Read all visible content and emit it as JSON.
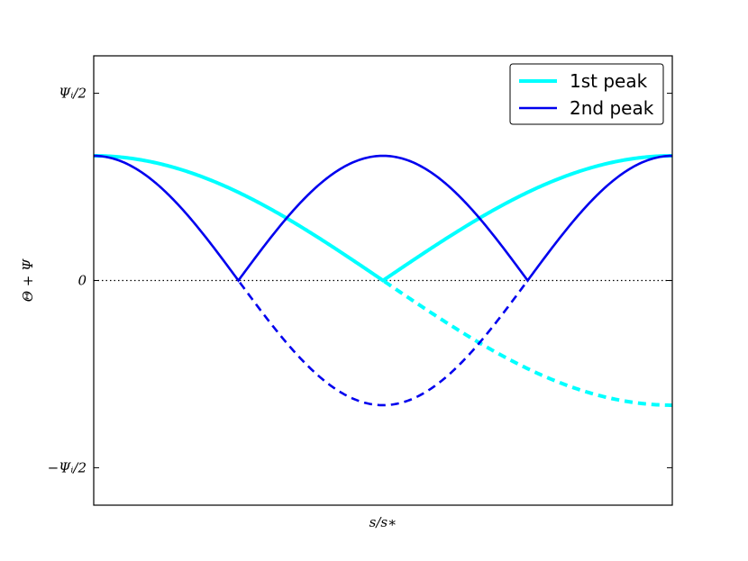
{
  "chart_data": {
    "type": "line",
    "title": "",
    "xlabel": "s/s∗",
    "ylabel": "Θ + Ψ",
    "xlim": [
      0,
      1
    ],
    "ylim": [
      -0.6,
      0.6
    ],
    "y_ticks": [
      {
        "value": 0.5,
        "label": "Ψᵢ/2"
      },
      {
        "value": 0,
        "label": "0"
      },
      {
        "value": -0.5,
        "label": "−Ψᵢ/2"
      }
    ],
    "zero_line": {
      "y": 0,
      "style": "dotted"
    },
    "legend": {
      "position": "top-right"
    },
    "series": [
      {
        "name": "1st  peak",
        "color": "#00FFFF",
        "amplitude": 0.333,
        "cycles": 0.5,
        "style_solid_abs": true,
        "dashed_negative": true
      },
      {
        "name": "2nd peak",
        "color": "#0000EE",
        "amplitude": 0.333,
        "cycles": 1,
        "style_solid_abs": true,
        "dashed_negative": true
      }
    ]
  }
}
